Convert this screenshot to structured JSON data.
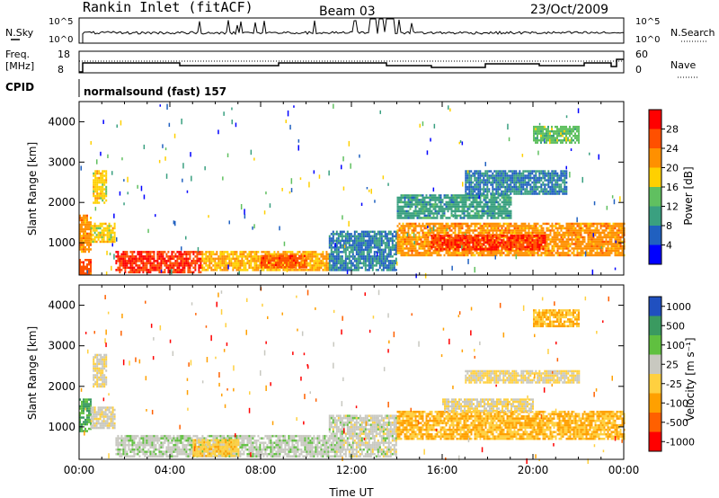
{
  "header": {
    "station": "Rankin Inlet (fitACF)",
    "beam": "Beam 03",
    "date": "23/Oct/2009"
  },
  "nsky_panel": {
    "label": "N.Sky",
    "left_ticks": [
      "10^5",
      "10^0"
    ],
    "right_label": "N.Search",
    "right_ticks": [
      "10^5",
      "10^0"
    ]
  },
  "freq_panel": {
    "label_line1": "Freq.",
    "label_line2": "[MHz]",
    "left_ticks": [
      "18",
      "8"
    ],
    "right_label": "Nave",
    "right_ticks": [
      "60",
      "0"
    ]
  },
  "cpid": {
    "label": "CPID",
    "program": "normalsound (fast) 157"
  },
  "colors": {
    "power_scale": [
      "#0000ff",
      "#2060c0",
      "#3aa080",
      "#60c060",
      "#ffd000",
      "#ff9000",
      "#ff5000",
      "#ff0000"
    ],
    "velocity_scale": [
      "#ff0000",
      "#ff6000",
      "#ffa000",
      "#ffd040",
      "#c8c8c0",
      "#60c040",
      "#3a9a60",
      "#2050c0"
    ]
  },
  "chart_data": [
    {
      "type": "heatmap",
      "name": "power",
      "ylabel": "Slant Range [km]",
      "yticks": [
        1000,
        2000,
        3000,
        4000
      ],
      "ylim": [
        200,
        4500
      ],
      "xlim": [
        0,
        24
      ],
      "colorbar": {
        "label": "Power [dB]",
        "ticks": [
          "28",
          "24",
          "20",
          "16",
          "12",
          "8",
          "4"
        ],
        "range": [
          0,
          32
        ]
      },
      "regions": [
        {
          "t0": 0.0,
          "t1": 0.5,
          "r0": 800,
          "r1": 1700,
          "value": 22
        },
        {
          "t0": 0.0,
          "t1": 0.5,
          "r0": 250,
          "r1": 600,
          "value": 26
        },
        {
          "t0": 0.5,
          "t1": 1.6,
          "r0": 1000,
          "r1": 1500,
          "value": 18
        },
        {
          "t0": 0.6,
          "t1": 1.2,
          "r0": 2000,
          "r1": 2800,
          "value": 18
        },
        {
          "t0": 1.6,
          "t1": 5.4,
          "r0": 250,
          "r1": 800,
          "value": 28
        },
        {
          "t0": 5.4,
          "t1": 11.0,
          "r0": 300,
          "r1": 800,
          "value": 20
        },
        {
          "t0": 8.0,
          "t1": 10.0,
          "r0": 400,
          "r1": 700,
          "value": 26
        },
        {
          "t0": 11.0,
          "t1": 14.0,
          "r0": 300,
          "r1": 1300,
          "value": 8
        },
        {
          "t0": 14.0,
          "t1": 24.0,
          "r0": 700,
          "r1": 1500,
          "value": 22
        },
        {
          "t0": 15.5,
          "t1": 20.5,
          "r0": 850,
          "r1": 1200,
          "value": 28
        },
        {
          "t0": 14.0,
          "t1": 19.0,
          "r0": 1600,
          "r1": 2200,
          "value": 10
        },
        {
          "t0": 17.0,
          "t1": 21.5,
          "r0": 2200,
          "r1": 2800,
          "value": 8
        },
        {
          "t0": 20.0,
          "t1": 22.0,
          "r0": 3500,
          "r1": 3900,
          "value": 14
        }
      ]
    },
    {
      "type": "heatmap",
      "name": "velocity",
      "ylabel": "Slant Range [km]",
      "xlabel": "Time UT",
      "xticks": [
        "00:00",
        "04:00",
        "08:00",
        "12:00",
        "16:00",
        "20:00",
        "00:00"
      ],
      "yticks": [
        1000,
        2000,
        3000,
        4000
      ],
      "ylim": [
        200,
        4500
      ],
      "xlim": [
        0,
        24
      ],
      "colorbar": {
        "label": "Velocity [m s⁻¹]",
        "ticks": [
          "1000",
          "500",
          "100",
          "25",
          "-25",
          "-100",
          "-500",
          "-1000"
        ],
        "range": [
          -1200,
          1200
        ]
      },
      "regions": [
        {
          "t0": 0.0,
          "t1": 0.5,
          "r0": 900,
          "r1": 1700,
          "value": 600
        },
        {
          "t0": 0.5,
          "t1": 1.6,
          "r0": 1000,
          "r1": 1500,
          "value": 100
        },
        {
          "t0": 0.6,
          "t1": 1.2,
          "r0": 2000,
          "r1": 2800,
          "value": 10
        },
        {
          "t0": 1.6,
          "t1": 11.0,
          "r0": 300,
          "r1": 800,
          "value": 200
        },
        {
          "t0": 5.0,
          "t1": 7.0,
          "r0": 300,
          "r1": 700,
          "value": -200
        },
        {
          "t0": 11.0,
          "t1": 14.0,
          "r0": 300,
          "r1": 1300,
          "value": 150
        },
        {
          "t0": 14.0,
          "t1": 24.0,
          "r0": 700,
          "r1": 1400,
          "value": -300
        },
        {
          "t0": 16.0,
          "t1": 20.0,
          "r0": 1400,
          "r1": 1700,
          "value": 10
        },
        {
          "t0": 17.0,
          "t1": 22.0,
          "r0": 2100,
          "r1": 2400,
          "value": 10
        },
        {
          "t0": 20.0,
          "t1": 22.0,
          "r0": 3500,
          "r1": 3900,
          "value": -300
        }
      ]
    }
  ]
}
